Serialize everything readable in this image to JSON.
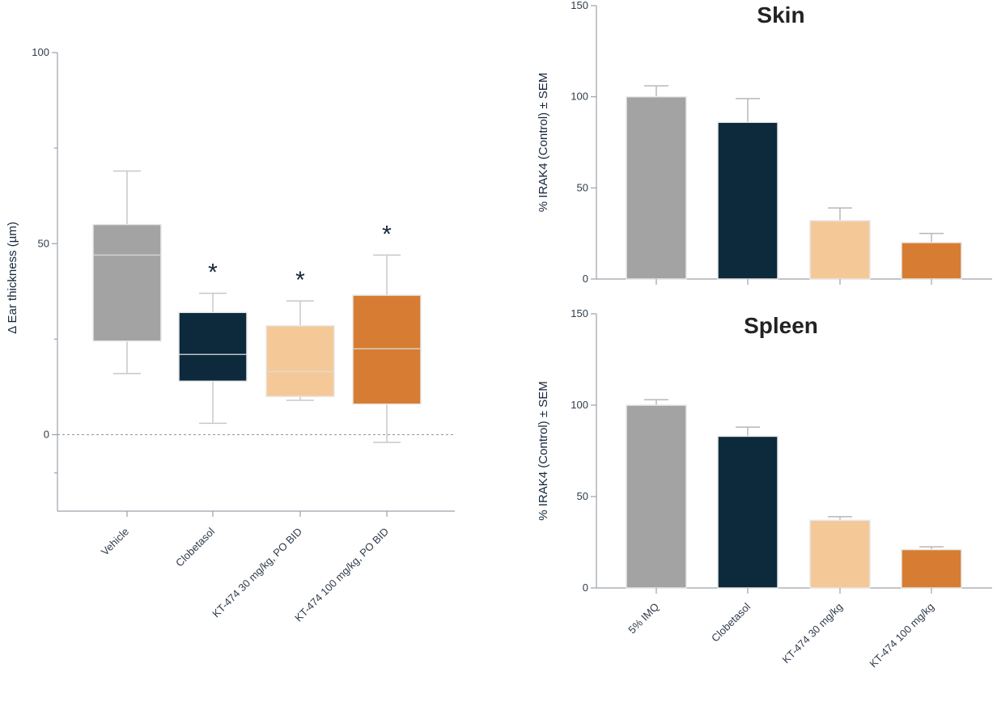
{
  "chart_data": [
    {
      "type": "box",
      "title": "",
      "xlabel": "",
      "ylabel": "Δ Ear thickness (µm)",
      "ylim": [
        -20,
        100
      ],
      "yticks": [
        0,
        50,
        100
      ],
      "zero_line": "dashed",
      "categories": [
        "Vehicle",
        "Clobetasol",
        "KT-474 30 mg/kg, PO BID",
        "KT-474 100 mg/kg, PO BID"
      ],
      "boxes": [
        {
          "min": 16,
          "q1": 24.5,
          "median": 47,
          "q3": 55,
          "max": 69,
          "color": "#a3a3a3",
          "significance": ""
        },
        {
          "min": 3,
          "q1": 14,
          "median": 21,
          "q3": 32,
          "max": 37,
          "color": "#0d2a3c",
          "significance": "*"
        },
        {
          "min": 9,
          "q1": 10,
          "median": 16.5,
          "q3": 28.5,
          "max": 35,
          "color": "#f5c898",
          "significance": "*"
        },
        {
          "min": -2,
          "q1": 8,
          "median": 22.5,
          "q3": 36.5,
          "max": 47,
          "color": "#d67d33",
          "significance": "*"
        }
      ]
    },
    {
      "type": "bar",
      "title": "Skin",
      "xlabel": "",
      "ylabel": "% IRAK4 (Control) ± SEM",
      "ylim": [
        0,
        150
      ],
      "yticks": [
        0,
        50,
        100,
        150
      ],
      "categories": [
        "5% IMQ",
        "Clobetasol",
        "KT-474 30 mg/kg",
        "KT-474 100 mg/kg"
      ],
      "values": [
        100,
        86,
        32,
        20
      ],
      "errors": [
        6,
        13,
        7,
        5
      ],
      "colors": [
        "#a3a3a3",
        "#0d2a3c",
        "#f5c898",
        "#d67d33"
      ]
    },
    {
      "type": "bar",
      "title": "Spleen",
      "xlabel": "",
      "ylabel": "% IRAK4 (Control) ± SEM",
      "ylim": [
        0,
        150
      ],
      "yticks": [
        0,
        50,
        100,
        150
      ],
      "categories": [
        "5% IMQ",
        "Clobetasol",
        "KT-474 30 mg/kg",
        "KT-474 100 mg/kg"
      ],
      "values": [
        100,
        83,
        37,
        21
      ],
      "errors": [
        3,
        5,
        2,
        1.5
      ],
      "colors": [
        "#a3a3a3",
        "#0d2a3c",
        "#f5c898",
        "#d67d33"
      ]
    }
  ]
}
